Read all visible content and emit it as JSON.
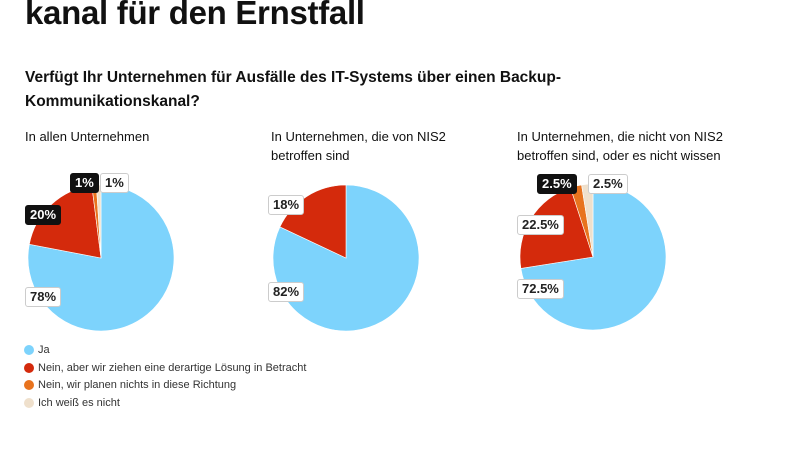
{
  "header": {
    "title": "kanal für den Ernstfall",
    "subtitle": "Verfügt Ihr Unternehmen für Ausfälle des IT-Systems über einen Backup-Kommunikationskanal?"
  },
  "chart_data": [
    {
      "type": "pie",
      "title": "In allen Unternehmen",
      "categories": [
        "Ja",
        "Nein, aber wir ziehen eine derartige Lösung in Betracht",
        "Nein, wir planen nichts in diese Richtung",
        "Ich weiß es nicht"
      ],
      "values": [
        78,
        20,
        1,
        1
      ],
      "labels": [
        "78%",
        "20%",
        "1%",
        "1%"
      ]
    },
    {
      "type": "pie",
      "title": "In Unternehmen, die von NIS2 betroffen sind",
      "categories": [
        "Ja",
        "Nein, aber wir ziehen eine derartige Lösung in Betracht"
      ],
      "values": [
        82,
        18
      ],
      "labels": [
        "82%",
        "18%"
      ]
    },
    {
      "type": "pie",
      "title": "In Unternehmen, die nicht von NIS2 betroffen sind, oder es nicht wissen",
      "categories": [
        "Ja",
        "Nein, aber wir ziehen eine derartige Lösung in Betracht",
        "Nein, wir planen nichts in diese Richtung",
        "Ich weiß es nicht"
      ],
      "values": [
        72.5,
        22.5,
        2.5,
        2.5
      ],
      "labels": [
        "72.5%",
        "22.5%",
        "2.5%",
        "2.5%"
      ]
    }
  ],
  "legend": [
    {
      "label": "Ja",
      "color": "#7dd3fc"
    },
    {
      "label": "Nein, aber wir ziehen eine derartige Lösung in Betracht",
      "color": "#d42a0c"
    },
    {
      "label": "Nein, wir planen nichts in diese Richtung",
      "color": "#e8731e"
    },
    {
      "label": "Ich weiß es nicht",
      "color": "#efe0cc"
    }
  ]
}
